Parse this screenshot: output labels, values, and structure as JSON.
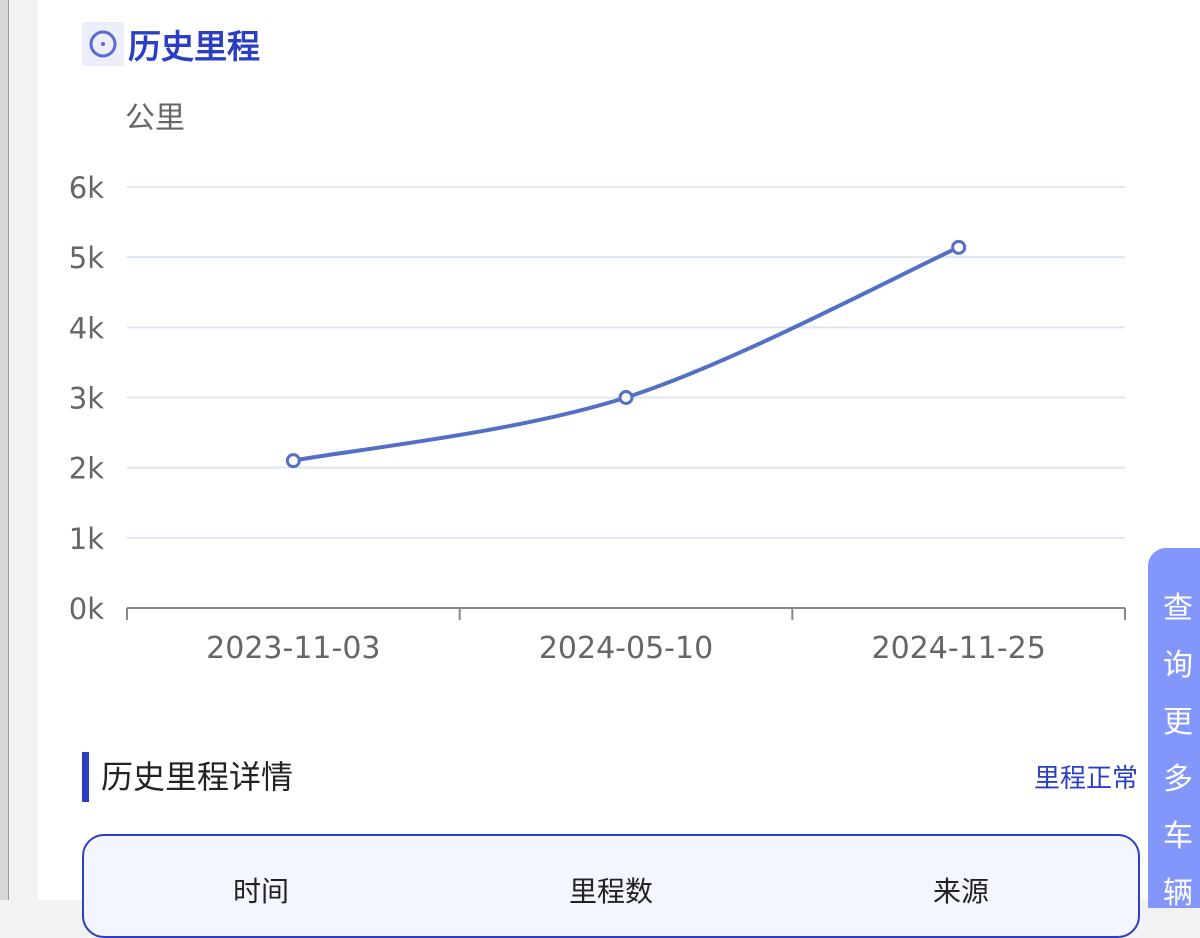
{
  "header": {
    "title": "历史里程",
    "icon": "compass-icon"
  },
  "chart_data": {
    "type": "line",
    "ylabel": "公里",
    "categories": [
      "2023-11-03",
      "2024-05-10",
      "2024-11-25"
    ],
    "values": [
      2100,
      3000,
      5140
    ],
    "ylim": [
      0,
      6000
    ],
    "yticks": [
      "0k",
      "1k",
      "2k",
      "3k",
      "4k",
      "5k",
      "6k"
    ],
    "grid": true,
    "smooth": true,
    "color": "#5470c6"
  },
  "details": {
    "title": "历史里程详情",
    "status": "里程正常",
    "columns": [
      "时间",
      "里程数",
      "来源"
    ]
  },
  "side_button": {
    "label": "查询更多车辆"
  },
  "colors": {
    "accent": "#2b3fc4",
    "side": "#8396fb"
  }
}
